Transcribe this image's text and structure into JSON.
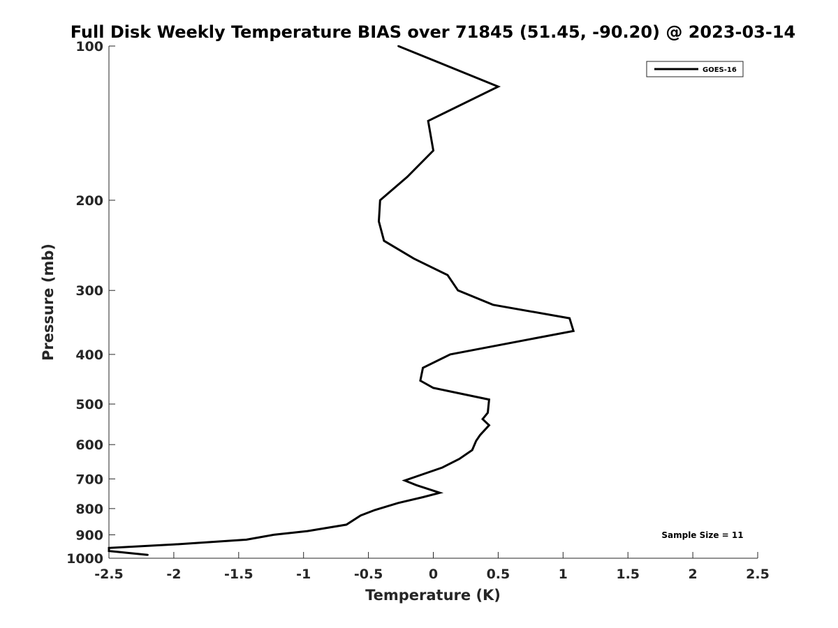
{
  "chart_data": {
    "type": "line",
    "title": "Full Disk Weekly Temperature BIAS over 71845 (51.45, -90.20) @ 2023-03-14",
    "xlabel": "Temperature (K)",
    "ylabel": "Pressure (mb)",
    "xlim": [
      -2.5,
      2.5
    ],
    "ylim": [
      100,
      1000
    ],
    "y_scale": "log",
    "y_reversed": true,
    "x_ticks": [
      -2.5,
      -2,
      -1.5,
      -1,
      -0.5,
      0,
      0.5,
      1,
      1.5,
      2,
      2.5
    ],
    "x_tick_labels": [
      "-2.5",
      "-2",
      "-1.5",
      "-1",
      "-0.5",
      "0",
      "0.5",
      "1",
      "1.5",
      "2",
      "2.5"
    ],
    "y_ticks": [
      100,
      200,
      300,
      400,
      500,
      600,
      700,
      800,
      900,
      1000
    ],
    "y_tick_labels": [
      "100",
      "200",
      "300",
      "400",
      "500",
      "600",
      "700",
      "800",
      "900",
      "1000"
    ],
    "grid": false,
    "legend_position": "top-right",
    "series": [
      {
        "name": "GOES-16",
        "color": "#000000",
        "points": [
          {
            "x": -0.27,
            "y": 100
          },
          {
            "x": 0.5,
            "y": 120
          },
          {
            "x": -0.04,
            "y": 140
          },
          {
            "x": 0.0,
            "y": 160
          },
          {
            "x": -0.2,
            "y": 180
          },
          {
            "x": -0.41,
            "y": 200
          },
          {
            "x": -0.42,
            "y": 220
          },
          {
            "x": -0.38,
            "y": 240
          },
          {
            "x": -0.15,
            "y": 260
          },
          {
            "x": 0.11,
            "y": 280
          },
          {
            "x": 0.19,
            "y": 300
          },
          {
            "x": 0.46,
            "y": 320
          },
          {
            "x": 1.05,
            "y": 340
          },
          {
            "x": 1.08,
            "y": 360
          },
          {
            "x": 0.13,
            "y": 400
          },
          {
            "x": -0.08,
            "y": 425
          },
          {
            "x": -0.1,
            "y": 450
          },
          {
            "x": 0.0,
            "y": 465
          },
          {
            "x": 0.43,
            "y": 490
          },
          {
            "x": 0.42,
            "y": 520
          },
          {
            "x": 0.38,
            "y": 535
          },
          {
            "x": 0.43,
            "y": 550
          },
          {
            "x": 0.36,
            "y": 575
          },
          {
            "x": 0.33,
            "y": 590
          },
          {
            "x": 0.3,
            "y": 615
          },
          {
            "x": 0.2,
            "y": 640
          },
          {
            "x": 0.07,
            "y": 665
          },
          {
            "x": -0.22,
            "y": 705
          },
          {
            "x": -0.13,
            "y": 720
          },
          {
            "x": 0.05,
            "y": 745
          },
          {
            "x": -0.08,
            "y": 760
          },
          {
            "x": -0.27,
            "y": 780
          },
          {
            "x": -0.45,
            "y": 805
          },
          {
            "x": -0.56,
            "y": 825
          },
          {
            "x": -0.67,
            "y": 860
          },
          {
            "x": -0.97,
            "y": 885
          },
          {
            "x": -1.23,
            "y": 900
          },
          {
            "x": -1.44,
            "y": 920
          },
          {
            "x": -2.0,
            "y": 940
          },
          {
            "x": -2.5,
            "y": 955
          },
          {
            "x": -2.5,
            "y": 968
          },
          {
            "x": -2.2,
            "y": 985
          }
        ]
      }
    ],
    "annotations": [
      {
        "text": "Sample Size = 11",
        "position": "bottom-right"
      }
    ]
  }
}
